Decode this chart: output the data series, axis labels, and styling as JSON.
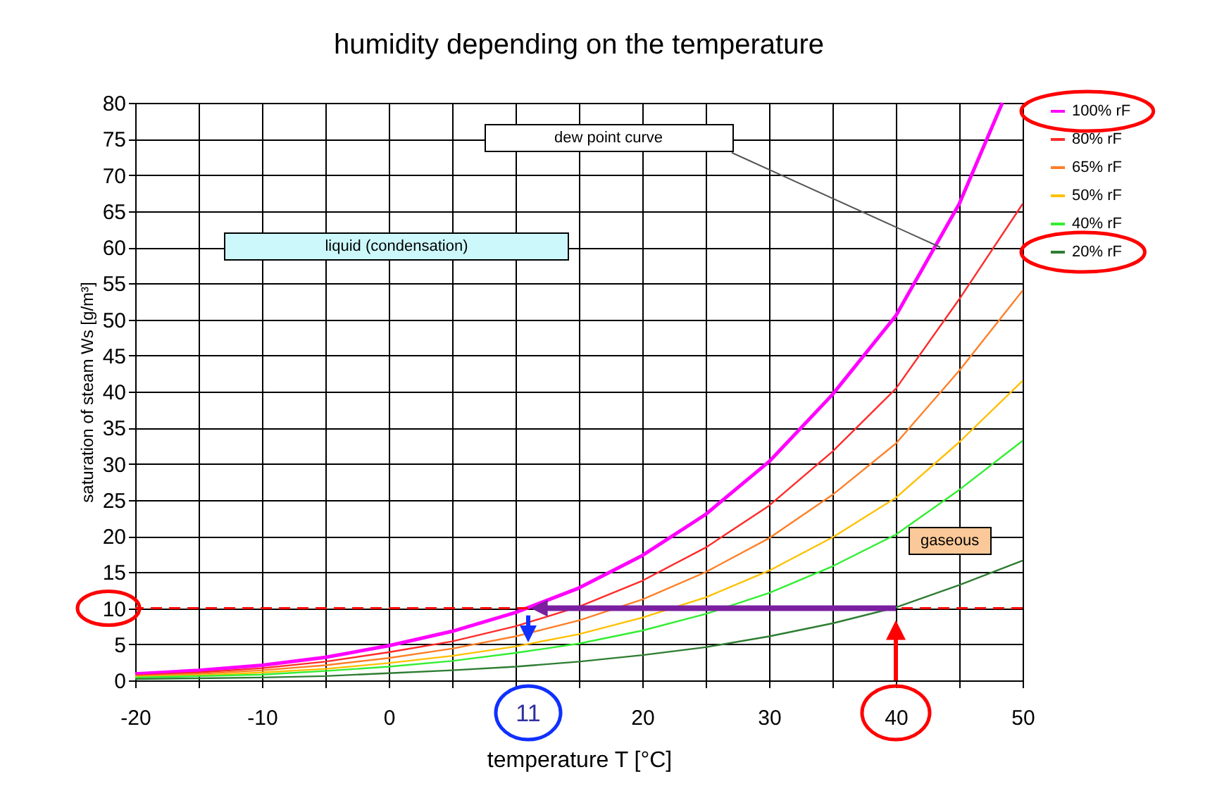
{
  "chart_data": {
    "type": "line",
    "title": "humidity depending on the temperature",
    "xlabel": "temperature T [°C]",
    "ylabel": "saturation of steam Ws [g/m³]",
    "x": [
      -20,
      -15,
      -10,
      -5,
      0,
      5,
      10,
      15,
      20,
      25,
      30,
      35,
      40,
      45,
      50
    ],
    "series": [
      {
        "name": "100% rF",
        "color": "#ff00ff",
        "x": [
          -20,
          -15,
          -10,
          -5,
          0,
          5,
          10,
          15,
          20,
          25,
          30,
          35,
          40,
          45,
          48.4
        ],
        "values": [
          0.9,
          1.4,
          2.1,
          3.2,
          4.8,
          6.8,
          9.4,
          12.8,
          17.3,
          23,
          30.3,
          39.6,
          50.5,
          66,
          80
        ]
      },
      {
        "name": "80% rF",
        "color": "#ff2a2a",
        "values": [
          0.7,
          1.1,
          1.7,
          2.6,
          3.9,
          5.4,
          7.5,
          10.2,
          13.8,
          18.4,
          24.2,
          31.7,
          40.4,
          52.8,
          66
        ]
      },
      {
        "name": "65% rF",
        "color": "#ff7f27",
        "values": [
          0.6,
          0.9,
          1.4,
          2.1,
          3.1,
          4.4,
          6.1,
          8.3,
          11.2,
          15,
          19.7,
          25.7,
          32.8,
          42.9,
          54
        ]
      },
      {
        "name": "50% rF",
        "color": "#ffc000",
        "values": [
          0.5,
          0.7,
          1.1,
          1.6,
          2.4,
          3.4,
          4.7,
          6.4,
          8.7,
          11.5,
          15.2,
          19.8,
          25.3,
          33,
          41.5
        ]
      },
      {
        "name": "40% rF",
        "color": "#33ee33",
        "values": [
          0.4,
          0.6,
          0.8,
          1.3,
          1.9,
          2.7,
          3.8,
          5.1,
          6.9,
          9.2,
          12.1,
          15.8,
          20.2,
          26.4,
          33.2
        ]
      },
      {
        "name": "20% rF",
        "color": "#2e7d32",
        "values": [
          0.2,
          0.3,
          0.4,
          0.6,
          1,
          1.4,
          1.9,
          2.6,
          3.5,
          4.6,
          6.1,
          7.9,
          10.1,
          13.2,
          16.6
        ]
      }
    ],
    "xlim": [
      -20,
      50
    ],
    "ylim": [
      0,
      80
    ],
    "xticks": [
      -20,
      {
        "value": -15,
        "label": null
      },
      -10,
      {
        "value": -5,
        "label": null
      },
      0,
      {
        "value": 5,
        "label": null
      },
      {
        "value": 10,
        "label": null
      },
      {
        "value": 15,
        "label": null
      },
      20,
      {
        "value": 25,
        "label": null
      },
      30,
      {
        "value": 35,
        "label": null
      },
      40,
      {
        "value": 45,
        "label": null
      },
      50
    ],
    "yticks": [
      0,
      5,
      10,
      15,
      20,
      25,
      30,
      35,
      40,
      45,
      50,
      55,
      60,
      65,
      70,
      75,
      80
    ],
    "grid": true,
    "legend": "right",
    "marker": "none",
    "line_style": "solid",
    "ref_lines": [
      {
        "axis": "y",
        "value": 10,
        "color": "#ff0000",
        "line_style": "dashed"
      }
    ],
    "annotations": [
      "dew point curve",
      "liquid (condensation)",
      "gaseous",
      "11"
    ]
  }
}
